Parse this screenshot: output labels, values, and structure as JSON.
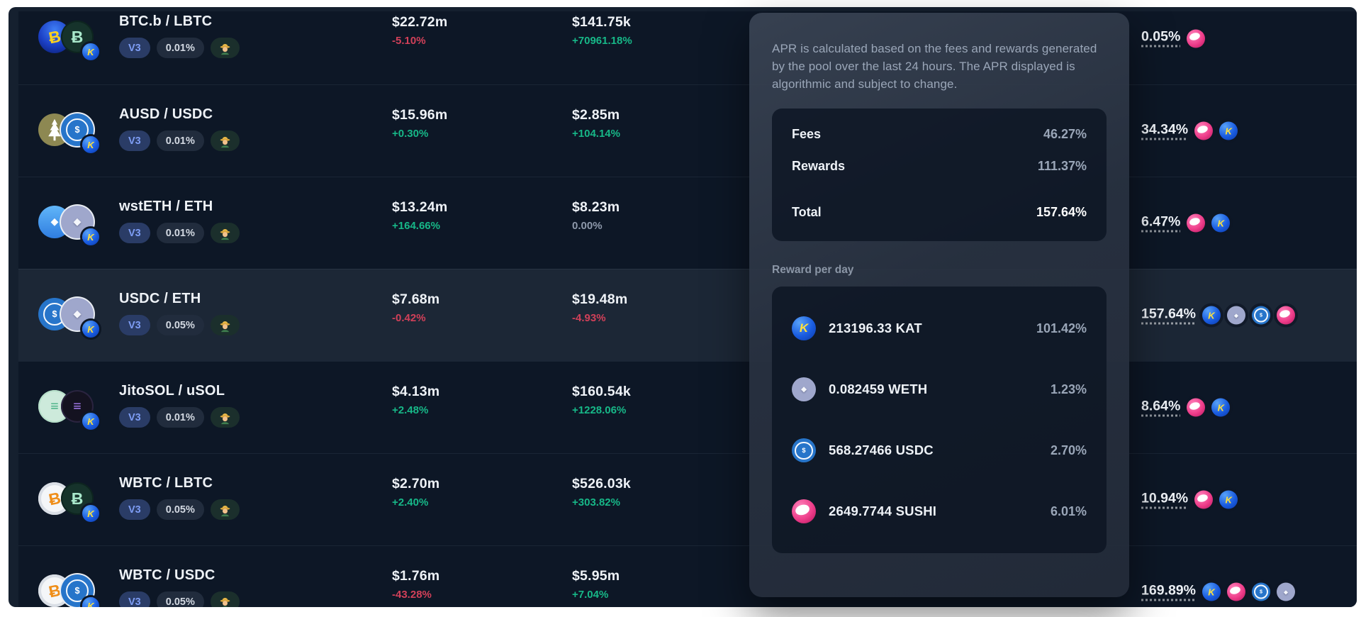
{
  "colors": {
    "positive": "#17b888",
    "negative": "#d14059",
    "accent": "#7d9cf3",
    "table_bg": "#0d1726"
  },
  "table": {
    "rows": [
      {
        "pair": "BTC.b / LBTC",
        "token0": "btcb",
        "token1": "lbtc",
        "version": "V3",
        "fee_tier": "0.01%",
        "farm": true,
        "tvl": "$22.72m",
        "tvl_change": "-5.10%",
        "tvl_trend": "down",
        "volume": "$141.75k",
        "volume_change": "+70961.18%",
        "volume_trend": "up",
        "apr": "0.05%",
        "apr_icons": [
          "sushi"
        ],
        "highlighted": false
      },
      {
        "pair": "AUSD / USDC",
        "token0": "ausd",
        "token1": "usdc",
        "version": "V3",
        "fee_tier": "0.01%",
        "farm": true,
        "tvl": "$15.96m",
        "tvl_change": "+0.30%",
        "tvl_trend": "up",
        "volume": "$2.85m",
        "volume_change": "+104.14%",
        "volume_trend": "up",
        "apr": "34.34%",
        "apr_icons": [
          "sushi",
          "kat"
        ],
        "highlighted": false
      },
      {
        "pair": "wstETH / ETH",
        "token0": "wsteth",
        "token1": "eth",
        "version": "V3",
        "fee_tier": "0.01%",
        "farm": true,
        "tvl": "$13.24m",
        "tvl_change": "+164.66%",
        "tvl_trend": "up",
        "volume": "$8.23m",
        "volume_change": "0.00%",
        "volume_trend": "neutral",
        "apr": "6.47%",
        "apr_icons": [
          "sushi",
          "kat"
        ],
        "highlighted": false
      },
      {
        "pair": "USDC / ETH",
        "token0": "usdc",
        "token1": "eth",
        "version": "V3",
        "fee_tier": "0.05%",
        "farm": true,
        "tvl": "$7.68m",
        "tvl_change": "-0.42%",
        "tvl_trend": "down",
        "volume": "$19.48m",
        "volume_change": "-4.93%",
        "volume_trend": "down",
        "apr": "157.64%",
        "apr_icons": [
          "kat",
          "eth",
          "usdc",
          "sushi"
        ],
        "highlighted": true
      },
      {
        "pair": "JitoSOL / uSOL",
        "token0": "jitosol",
        "token1": "usol",
        "version": "V3",
        "fee_tier": "0.01%",
        "farm": true,
        "tvl": "$4.13m",
        "tvl_change": "+2.48%",
        "tvl_trend": "up",
        "volume": "$160.54k",
        "volume_change": "+1228.06%",
        "volume_trend": "up",
        "apr": "8.64%",
        "apr_icons": [
          "sushi",
          "kat"
        ],
        "highlighted": false
      },
      {
        "pair": "WBTC / LBTC",
        "token0": "wbtc",
        "token1": "lbtc",
        "version": "V3",
        "fee_tier": "0.05%",
        "farm": true,
        "tvl": "$2.70m",
        "tvl_change": "+2.40%",
        "tvl_trend": "up",
        "volume": "$526.03k",
        "volume_change": "+303.82%",
        "volume_trend": "up",
        "apr": "10.94%",
        "apr_icons": [
          "sushi",
          "kat"
        ],
        "highlighted": false
      },
      {
        "pair": "WBTC / USDC",
        "token0": "wbtc",
        "token1": "usdc",
        "version": "V3",
        "fee_tier": "0.05%",
        "farm": true,
        "tvl": "$1.76m",
        "tvl_change": "-43.28%",
        "tvl_trend": "down",
        "volume": "$5.95m",
        "volume_change": "+7.04%",
        "volume_trend": "up",
        "apr": "169.89%",
        "apr_icons": [
          "kat",
          "sushi",
          "usdc",
          "eth"
        ],
        "highlighted": false
      }
    ]
  },
  "apr_tooltip": {
    "description": "APR is calculated based on the fees and rewards generated by the pool over the last 24 hours. The APR displayed is algorithmic and subject to change.",
    "fees_label": "Fees",
    "fees_value": "46.27%",
    "rewards_label": "Rewards",
    "rewards_value": "111.37%",
    "total_label": "Total",
    "total_value": "157.64%",
    "reward_per_day_label": "Reward per day",
    "rewards_per_day": [
      {
        "icon": "kat",
        "amount": "213196.33 KAT",
        "pct": "101.42%"
      },
      {
        "icon": "eth",
        "amount": "0.082459 WETH",
        "pct": "1.23%"
      },
      {
        "icon": "usdc",
        "amount": "568.27466 USDC",
        "pct": "2.70%"
      },
      {
        "icon": "sushi",
        "amount": "2649.7744 SUSHI",
        "pct": "6.01%"
      }
    ]
  }
}
